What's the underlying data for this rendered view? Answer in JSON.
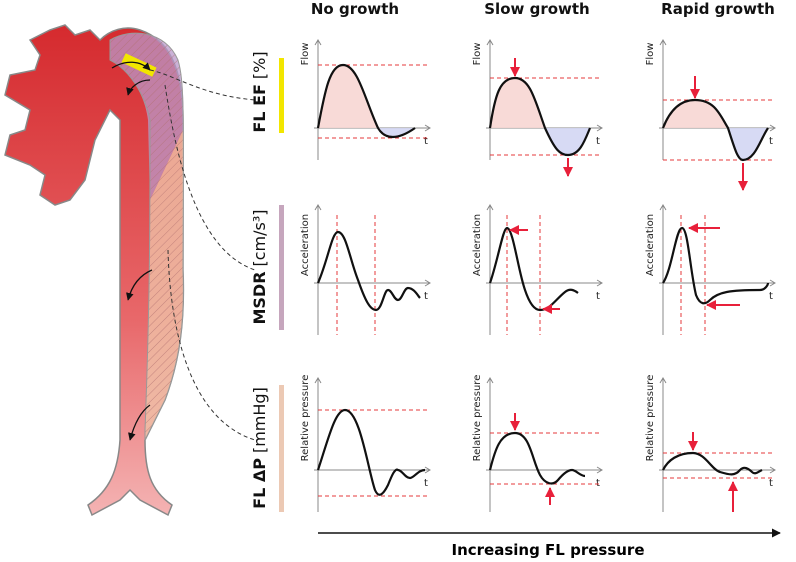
{
  "columns": [
    "No growth",
    "Slow growth",
    "Rapid growth"
  ],
  "rows": [
    {
      "name": "FL EF",
      "unit": "[%]",
      "y_label": "Flow",
      "x_label": "t"
    },
    {
      "name": "MSDR",
      "unit": "[cm/s³]",
      "y_label": "Acceleration",
      "x_label": "t"
    },
    {
      "name": "FL ΔP",
      "unit": "[mmHg]",
      "y_label": "Relative pressure",
      "x_label": "t"
    }
  ],
  "footer": "Increasing FL pressure"
}
